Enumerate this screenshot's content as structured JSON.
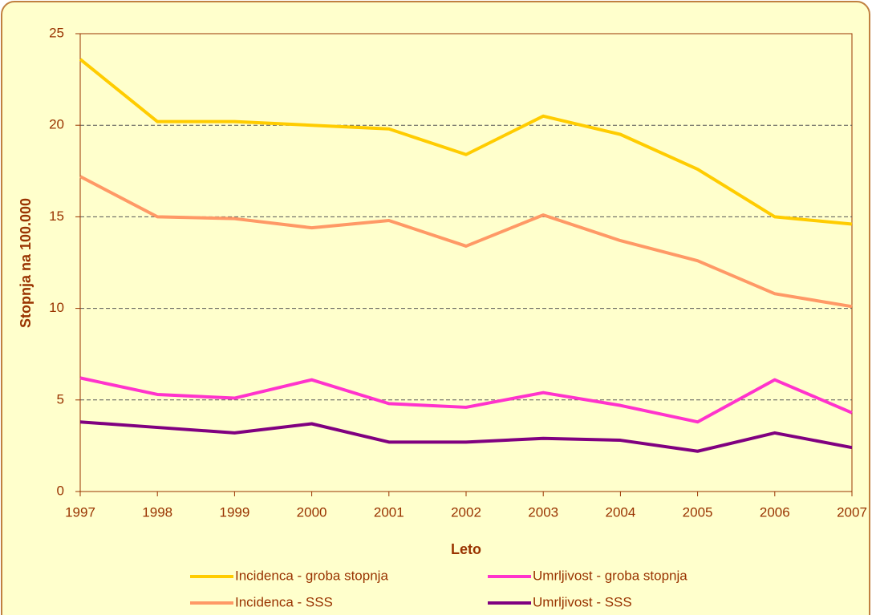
{
  "chart_data": {
    "type": "line",
    "x": [
      1997,
      1998,
      1999,
      2000,
      2001,
      2002,
      2003,
      2004,
      2005,
      2006,
      2007
    ],
    "series": [
      {
        "name": "Incidenca - groba stopnja",
        "color": "#ffcc00",
        "values": [
          23.6,
          20.2,
          20.2,
          20.0,
          19.8,
          18.4,
          20.5,
          19.5,
          17.6,
          15.0,
          14.6
        ]
      },
      {
        "name": "Umrljivost - groba stopnja",
        "color": "#ff33cc",
        "values": [
          6.2,
          5.3,
          5.1,
          6.1,
          4.8,
          4.6,
          5.4,
          4.7,
          3.8,
          6.1,
          4.3
        ]
      },
      {
        "name": "Incidenca - SSS",
        "color": "#ff9966",
        "values": [
          17.2,
          15.0,
          14.9,
          14.4,
          14.8,
          13.4,
          15.1,
          13.7,
          12.6,
          10.8,
          10.1
        ]
      },
      {
        "name": "Umrljivost - SSS",
        "color": "#800080",
        "values": [
          3.8,
          3.5,
          3.2,
          3.7,
          2.7,
          2.7,
          2.9,
          2.8,
          2.2,
          3.2,
          2.4
        ]
      }
    ],
    "x_label": "Leto",
    "y_label": "Stopnja na 100.000",
    "xlim": [
      1997,
      2007
    ],
    "xticks": [
      1997,
      1998,
      1999,
      2000,
      2001,
      2002,
      2003,
      2004,
      2005,
      2006,
      2007
    ],
    "ylim": [
      0,
      25
    ],
    "yticks": [
      0,
      5,
      10,
      15,
      20,
      25
    ],
    "grid": true,
    "legend": "bottom"
  }
}
